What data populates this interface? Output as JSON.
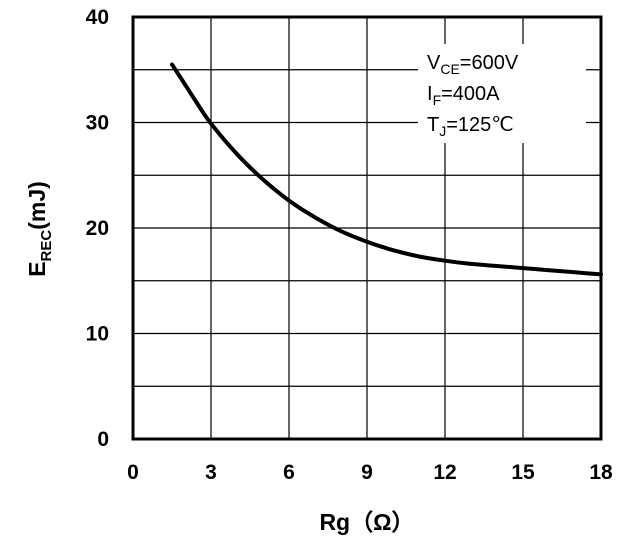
{
  "chart_data": {
    "type": "line",
    "xlabel": "Rg（Ω）",
    "ylabel": {
      "main": "E",
      "sub": "REC",
      "tail": "(mJ)"
    },
    "xlim": [
      0,
      18
    ],
    "ylim": [
      0,
      40
    ],
    "x_ticks": [
      0,
      3,
      6,
      9,
      12,
      15,
      18
    ],
    "y_ticks": [
      0,
      10,
      20,
      30,
      40
    ],
    "x_grid_step": 3,
    "y_grid_step": 5,
    "grid": true,
    "series": [
      {
        "x": [
          1.5,
          2.0,
          2.5,
          3.0,
          4.0,
          5.0,
          6.0,
          7.0,
          8.0,
          9.0,
          10.0,
          11.0,
          12.0,
          13.0,
          14.0,
          15.0,
          16.0,
          17.0,
          18.0
        ],
        "y": [
          35.5,
          33.6,
          31.7,
          29.9,
          27.0,
          24.6,
          22.6,
          21.0,
          19.7,
          18.7,
          17.9,
          17.3,
          16.9,
          16.6,
          16.4,
          16.2,
          16.0,
          15.8,
          15.6
        ]
      }
    ],
    "annotations": [
      {
        "main": "V",
        "sub": "CE",
        "rest": "=600V"
      },
      {
        "main": "I",
        "sub": "F",
        "rest": "=400A"
      },
      {
        "main": "T",
        "sub": "J",
        "rest": "=125℃"
      }
    ]
  }
}
